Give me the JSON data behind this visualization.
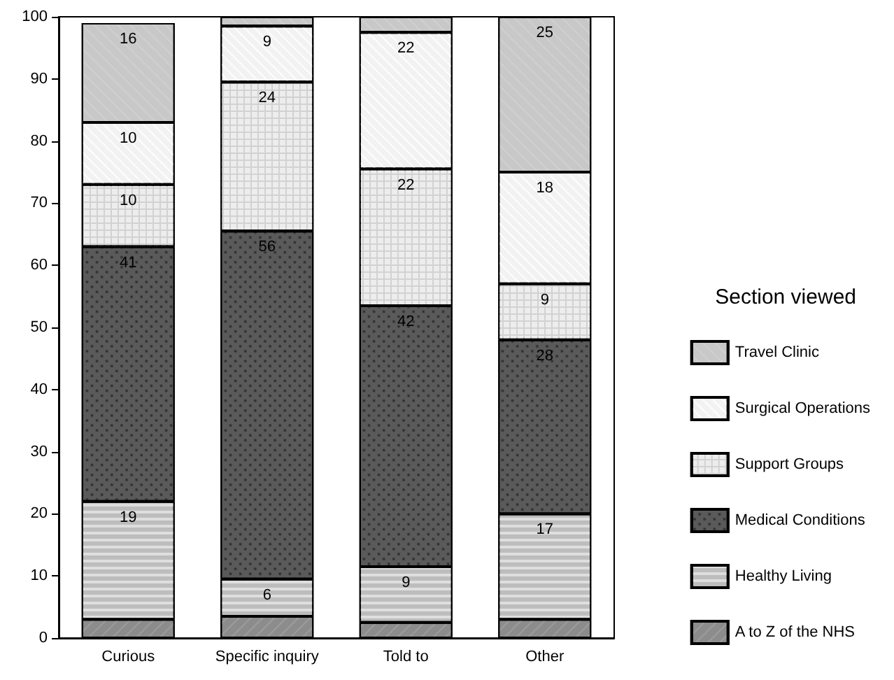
{
  "chart_data": {
    "type": "bar",
    "stacked": true,
    "legend_title": "Section viewed",
    "legend": "right",
    "grid": false,
    "categories": [
      "Curious",
      "Specific inquiry",
      "Told to",
      "Other"
    ],
    "ylim": [
      0,
      100
    ],
    "yticks": [
      0,
      10,
      20,
      30,
      40,
      50,
      60,
      70,
      80,
      90,
      100
    ],
    "series": [
      {
        "name": "A to Z of the NHS",
        "color": "#8c8c8c",
        "values": [
          3,
          3.5,
          2.5,
          3
        ],
        "value_labels": [
          null,
          null,
          null,
          null
        ]
      },
      {
        "name": "Healthy Living",
        "color": "#bdbdbd",
        "values": [
          19,
          6,
          9,
          17
        ],
        "value_labels": [
          "19",
          "6",
          "9",
          "17"
        ]
      },
      {
        "name": "Medical Conditions",
        "color": "#5a5a5a",
        "values": [
          41,
          56,
          42,
          28
        ],
        "value_labels": [
          "41",
          "56",
          "42",
          "28"
        ]
      },
      {
        "name": "Support Groups",
        "color": "#d2d2d2",
        "values": [
          10,
          24,
          22,
          9
        ],
        "value_labels": [
          "10",
          "24",
          "22",
          "9"
        ]
      },
      {
        "name": "Surgical Operations",
        "color": "#f2f2f2",
        "values": [
          10,
          9,
          22,
          18
        ],
        "value_labels": [
          "10",
          "9",
          "22",
          "18"
        ]
      },
      {
        "name": "Travel Clinic",
        "color": "#c8c8c8",
        "values": [
          16,
          1.5,
          2.5,
          25
        ],
        "value_labels": [
          "16",
          null,
          null,
          "25"
        ]
      }
    ]
  }
}
